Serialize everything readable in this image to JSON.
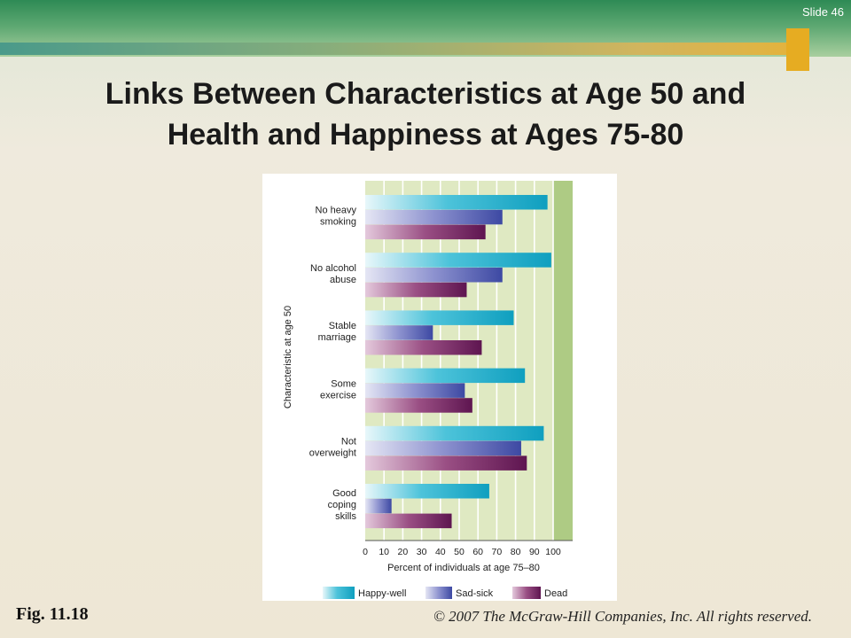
{
  "slide": {
    "number": "Slide 46"
  },
  "title": {
    "line1": "Links Between Characteristics at Age 50 and",
    "line2": "Health and Happiness at Ages 75-80"
  },
  "footer": {
    "fig": "Fig. 11.18",
    "copyright": "© 2007 The McGraw-Hill Companies, Inc. All rights reserved."
  },
  "chart_data": {
    "type": "bar",
    "orientation": "horizontal",
    "title": "",
    "xlabel": "Percent of individuals at age 75–80",
    "ylabel": "Characteristic at age 50",
    "xlim": [
      0,
      100
    ],
    "xticks": [
      0,
      10,
      20,
      30,
      40,
      50,
      60,
      70,
      80,
      90,
      100
    ],
    "categories": [
      [
        "No heavy",
        "smoking"
      ],
      [
        "No alcohol",
        "abuse"
      ],
      [
        "Stable",
        "marriage"
      ],
      [
        "Some",
        "exercise"
      ],
      [
        "Not",
        "overweight"
      ],
      [
        "Good",
        "coping",
        "skills"
      ]
    ],
    "series": [
      {
        "name": "Happy-well",
        "values": [
          97,
          99,
          79,
          85,
          95,
          66
        ]
      },
      {
        "name": "Sad-sick",
        "values": [
          73,
          73,
          36,
          53,
          83,
          14
        ]
      },
      {
        "name": "Dead",
        "values": [
          64,
          54,
          62,
          57,
          86,
          46
        ]
      }
    ],
    "legend": "bottom",
    "grid": true,
    "colors": {
      "happy": "#19a9c6",
      "sad": "#4d59b0",
      "dead": "#6a1f59",
      "plot_bg": "#dfe9c2",
      "shaded": "#aecb84"
    }
  }
}
